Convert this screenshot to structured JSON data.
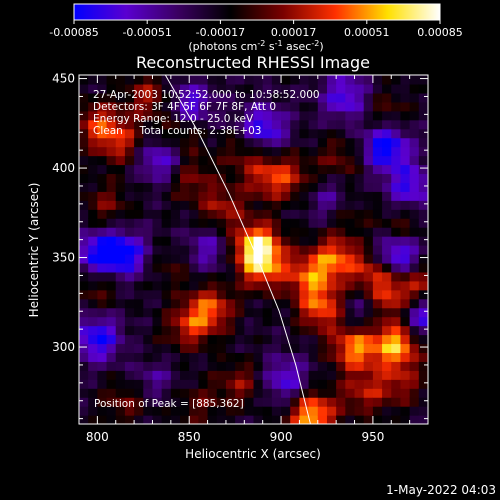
{
  "chart_data": {
    "type": "heatmap",
    "title": "Reconstructed RHESSI Image",
    "xlabel": "Heliocentric X (arcsec)",
    "ylabel": "Heliocentric Y (arcsec)",
    "xlim": [
      790,
      980
    ],
    "ylim": [
      257,
      452
    ],
    "xticks": [
      800,
      850,
      900,
      950
    ],
    "yticks": [
      300,
      350,
      400,
      450
    ],
    "colorbar": {
      "ticks": [
        "-0.00085",
        "-0.00051",
        "-0.00017",
        "0.00017",
        "0.00051",
        "0.00085"
      ],
      "range": [
        -0.00085,
        0.00085
      ],
      "unit_prefix": "(photons cm",
      "unit_exp1": "-2",
      "unit_mid": " s",
      "unit_exp2": "-1",
      "unit_suffix": " asec",
      "unit_exp3": "-2",
      "unit_close": ")",
      "colors": [
        "#0000ff",
        "#5a00d0",
        "#3a0060",
        "#000000",
        "#7a0000",
        "#ff3000",
        "#ffe000",
        "#ffffff"
      ]
    },
    "annotations": [
      "27-Apr-2003 10:52:52.000 to 10:58:52.000",
      "Detectors: 3F 4F 5F 6F 7F 8F, Att 0",
      "Energy Range: 12.0 - 25.0 keV",
      "Clean     Total counts: 2.38E+03"
    ],
    "peak_label": "Position of Peak = [885,362]",
    "peak": [
      885,
      362
    ],
    "limb_curve": [
      [
        837,
        452
      ],
      [
        855,
        420
      ],
      [
        872,
        385
      ],
      [
        887,
        350
      ],
      [
        899,
        320
      ],
      [
        908,
        290
      ],
      [
        916,
        257
      ]
    ],
    "sources": [
      {
        "x": 887,
        "y": 357,
        "value": 0.00085
      },
      {
        "x": 890,
        "y": 345,
        "value": 0.0006
      },
      {
        "x": 917,
        "y": 262,
        "value": 0.0008
      },
      {
        "x": 963,
        "y": 302,
        "value": 0.0008
      },
      {
        "x": 940,
        "y": 300,
        "value": 0.0007
      },
      {
        "x": 922,
        "y": 322,
        "value": 0.0006
      },
      {
        "x": 915,
        "y": 340,
        "value": 0.00055
      },
      {
        "x": 930,
        "y": 350,
        "value": 0.0006
      },
      {
        "x": 952,
        "y": 342,
        "value": 0.00055
      },
      {
        "x": 960,
        "y": 325,
        "value": 0.0005
      },
      {
        "x": 975,
        "y": 335,
        "value": 0.00045
      },
      {
        "x": 862,
        "y": 322,
        "value": 0.00055
      },
      {
        "x": 850,
        "y": 312,
        "value": 0.00045
      },
      {
        "x": 868,
        "y": 378,
        "value": 0.0004
      },
      {
        "x": 892,
        "y": 395,
        "value": 0.0004
      },
      {
        "x": 905,
        "y": 395,
        "value": 0.00035
      },
      {
        "x": 880,
        "y": 410,
        "value": 0.0003
      },
      {
        "x": 812,
        "y": 415,
        "value": 0.00045
      },
      {
        "x": 800,
        "y": 425,
        "value": 0.00045
      },
      {
        "x": 828,
        "y": 440,
        "value": 0.0004
      },
      {
        "x": 845,
        "y": 420,
        "value": 0.00035
      },
      {
        "x": 805,
        "y": 380,
        "value": 0.0003
      },
      {
        "x": 850,
        "y": 395,
        "value": 0.00035
      },
      {
        "x": 815,
        "y": 270,
        "value": 0.0003
      },
      {
        "x": 855,
        "y": 268,
        "value": 0.00025
      },
      {
        "x": 878,
        "y": 280,
        "value": 0.00035
      },
      {
        "x": 945,
        "y": 275,
        "value": 0.0004
      },
      {
        "x": 965,
        "y": 280,
        "value": 0.00035
      },
      {
        "x": 932,
        "y": 405,
        "value": 0.0003
      },
      {
        "x": 965,
        "y": 365,
        "value": 0.00035
      },
      {
        "x": 800,
        "y": 335,
        "value": 0.0003
      },
      {
        "x": 830,
        "y": 290,
        "value": 0.00025
      },
      {
        "x": 935,
        "y": 377,
        "value": 0.0003
      },
      {
        "x": 957,
        "y": 432,
        "value": 0.00025
      },
      {
        "x": 840,
        "y": 345,
        "value": 0.0002
      },
      {
        "x": 957,
        "y": 412,
        "value": -0.0007
      },
      {
        "x": 963,
        "y": 352,
        "value": -0.0008
      },
      {
        "x": 975,
        "y": 318,
        "value": -0.0006
      },
      {
        "x": 890,
        "y": 422,
        "value": -0.0006
      },
      {
        "x": 850,
        "y": 435,
        "value": -0.0005
      },
      {
        "x": 800,
        "y": 305,
        "value": -0.0006
      },
      {
        "x": 815,
        "y": 352,
        "value": -0.0006
      },
      {
        "x": 800,
        "y": 352,
        "value": -0.0006
      },
      {
        "x": 835,
        "y": 405,
        "value": -0.0005
      },
      {
        "x": 935,
        "y": 440,
        "value": -0.0005
      },
      {
        "x": 902,
        "y": 282,
        "value": -0.00045
      },
      {
        "x": 970,
        "y": 390,
        "value": -0.0005
      },
      {
        "x": 928,
        "y": 382,
        "value": -0.0004
      },
      {
        "x": 830,
        "y": 285,
        "value": -0.00045
      },
      {
        "x": 860,
        "y": 355,
        "value": -0.00035
      },
      {
        "x": 945,
        "y": 320,
        "value": -0.0003
      }
    ]
  },
  "footer": {
    "timestamp": "1-May-2022 04:03"
  }
}
